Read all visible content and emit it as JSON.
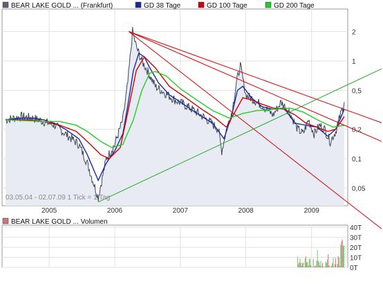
{
  "legend": {
    "main": [
      {
        "label": "BEAR LAKE GOLD ... (Frankfurt)",
        "color": "#5a6472"
      },
      {
        "label": "GD 38 Tage",
        "color": "#1a2a9c"
      },
      {
        "label": "GD 100 Tage",
        "color": "#d40000"
      },
      {
        "label": "GD 200 Tage",
        "color": "#22cc22"
      }
    ],
    "volume": {
      "label": "BEAR LAKE GOLD ... Volumen",
      "color": "#c87878"
    }
  },
  "info_text": "03.05.04 - 02.07.09   1 Tick = 1 Tag",
  "chart_data": [
    {
      "type": "line",
      "y_scale": "log",
      "x_ticks": [
        "2005",
        "2006",
        "2007",
        "2008",
        "2009"
      ],
      "y_ticks": [
        "0,05",
        "0,1",
        "0,2",
        "0,5",
        "1",
        "2"
      ],
      "ylim": [
        0.033,
        3.4
      ],
      "grid": true,
      "series": [
        {
          "name": "BEAR LAKE GOLD ... (Frankfurt)",
          "color": "#3a4658",
          "x": [
            "2004-05-03",
            "2004-08-01",
            "2004-10-01",
            "2004-12-01",
            "2005-02-01",
            "2005-04-01",
            "2005-06-15",
            "2005-08-01",
            "2005-10-01",
            "2005-11-15",
            "2006-01-01",
            "2006-02-15",
            "2006-03-15",
            "2006-04-01",
            "2006-04-10",
            "2006-05-01",
            "2006-06-01",
            "2006-07-01",
            "2006-08-15",
            "2006-10-01",
            "2006-12-01",
            "2007-02-01",
            "2007-04-01",
            "2007-06-01",
            "2007-08-01",
            "2007-08-20",
            "2007-09-15",
            "2007-10-15",
            "2007-11-10",
            "2007-12-01",
            "2008-01-01",
            "2008-02-15",
            "2008-04-01",
            "2008-06-01",
            "2008-07-15",
            "2008-09-01",
            "2008-10-15",
            "2008-11-15",
            "2008-12-15",
            "2009-01-15",
            "2009-02-15",
            "2009-03-15",
            "2009-04-15",
            "2009-05-15",
            "2009-06-15",
            "2009-07-02"
          ],
          "y": [
            0.25,
            0.27,
            0.26,
            0.24,
            0.22,
            0.18,
            0.14,
            0.09,
            0.04,
            0.1,
            0.14,
            0.25,
            0.6,
            1.3,
            2.0,
            1.4,
            1.0,
            0.8,
            0.55,
            0.48,
            0.4,
            0.35,
            0.3,
            0.25,
            0.2,
            0.12,
            0.2,
            0.3,
            0.6,
            0.9,
            0.45,
            0.4,
            0.35,
            0.28,
            0.38,
            0.3,
            0.2,
            0.18,
            0.25,
            0.18,
            0.22,
            0.2,
            0.15,
            0.19,
            0.3,
            0.38
          ]
        },
        {
          "name": "GD 38 Tage",
          "color": "#1a2a9c",
          "x": [
            "2004-05-03",
            "2004-08-01",
            "2004-10-01",
            "2004-12-01",
            "2005-02-01",
            "2005-04-01",
            "2005-06-15",
            "2005-08-01",
            "2005-10-01",
            "2005-11-15",
            "2006-01-01",
            "2006-02-15",
            "2006-03-15",
            "2006-04-15",
            "2006-05-15",
            "2006-06-15",
            "2006-07-15",
            "2006-09-01",
            "2006-11-01",
            "2007-01-01",
            "2007-03-01",
            "2007-05-01",
            "2007-07-01",
            "2007-09-01",
            "2007-10-15",
            "2007-11-15",
            "2007-12-15",
            "2008-02-01",
            "2008-04-01",
            "2008-06-01",
            "2008-08-01",
            "2008-10-01",
            "2008-12-01",
            "2009-02-01",
            "2009-04-01",
            "2009-05-15",
            "2009-07-02"
          ],
          "y": [
            0.25,
            0.26,
            0.26,
            0.25,
            0.23,
            0.2,
            0.16,
            0.11,
            0.06,
            0.09,
            0.12,
            0.18,
            0.35,
            0.8,
            1.2,
            1.1,
            0.85,
            0.6,
            0.45,
            0.38,
            0.32,
            0.27,
            0.23,
            0.16,
            0.28,
            0.5,
            0.55,
            0.42,
            0.34,
            0.32,
            0.33,
            0.23,
            0.22,
            0.21,
            0.17,
            0.2,
            0.32
          ]
        },
        {
          "name": "GD 100 Tage",
          "color": "#d40000",
          "x": [
            "2004-05-03",
            "2004-09-01",
            "2004-12-01",
            "2005-03-01",
            "2005-06-01",
            "2005-08-01",
            "2005-10-15",
            "2005-12-01",
            "2006-02-01",
            "2006-03-15",
            "2006-05-01",
            "2006-06-15",
            "2006-08-15",
            "2006-11-01",
            "2007-02-01",
            "2007-05-01",
            "2007-07-15",
            "2007-09-15",
            "2007-11-01",
            "2007-12-15",
            "2008-02-01",
            "2008-04-01",
            "2008-06-01",
            "2008-08-01",
            "2008-10-01",
            "2008-12-01",
            "2009-02-01",
            "2009-04-01",
            "2009-05-15",
            "2009-07-02"
          ],
          "y": [
            0.25,
            0.25,
            0.24,
            0.22,
            0.19,
            0.15,
            0.11,
            0.1,
            0.13,
            0.3,
            0.8,
            1.1,
            0.85,
            0.55,
            0.42,
            0.32,
            0.26,
            0.21,
            0.3,
            0.42,
            0.4,
            0.36,
            0.33,
            0.32,
            0.28,
            0.23,
            0.21,
            0.19,
            0.2,
            0.27
          ]
        },
        {
          "name": "GD 200 Tage",
          "color": "#22cc22",
          "x": [
            "2004-05-03",
            "2004-12-01",
            "2005-03-01",
            "2005-06-01",
            "2005-08-01",
            "2005-10-15",
            "2005-12-15",
            "2006-02-15",
            "2006-04-15",
            "2006-06-01",
            "2006-07-15",
            "2006-08-15",
            "2006-10-15",
            "2007-01-01",
            "2007-04-01",
            "2007-07-01",
            "2007-10-01",
            "2007-12-15",
            "2008-03-01",
            "2008-06-01",
            "2008-09-01",
            "2008-11-15",
            "2009-02-01",
            "2009-05-01",
            "2009-07-02"
          ],
          "y": [
            0.25,
            0.24,
            0.24,
            0.22,
            0.19,
            0.15,
            0.13,
            0.14,
            0.25,
            0.5,
            0.75,
            0.78,
            0.7,
            0.52,
            0.4,
            0.31,
            0.26,
            0.29,
            0.31,
            0.32,
            0.33,
            0.3,
            0.25,
            0.21,
            0.22
          ]
        }
      ],
      "trendlines": [
        {
          "color": "#d40000",
          "x": [
            "2006-03-20",
            "2009-07-02"
          ],
          "y": [
            2.0,
            0.22
          ]
        },
        {
          "color": "#d40000",
          "x": [
            "2006-03-20",
            "2009-07-02"
          ],
          "y": [
            2.0,
            0.038
          ]
        },
        {
          "color": "#d40000",
          "x": [
            "2006-03-20",
            "2009-07-02"
          ],
          "y": [
            2.0,
            0.32
          ]
        },
        {
          "color": "#22aa22",
          "x": [
            "2005-10-01",
            "2009-07-02"
          ],
          "y": [
            0.036,
            0.55
          ]
        }
      ]
    },
    {
      "type": "bar",
      "title": "BEAR LAKE GOLD ... Volumen",
      "y_ticks": [
        "0T",
        "10T",
        "20T",
        "30T",
        "40T"
      ],
      "ylim": [
        0,
        42
      ],
      "grid": true,
      "note": "volume approximately 0 until late 2008, then spikes up to ~40T in 2009"
    }
  ]
}
